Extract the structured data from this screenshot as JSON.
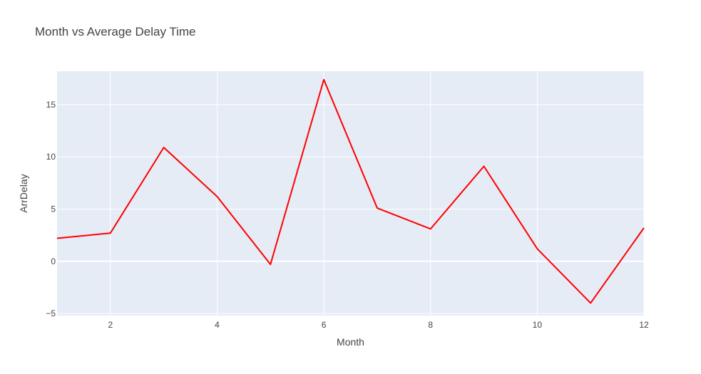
{
  "chart_data": {
    "type": "line",
    "title": "Month vs Average Delay Time",
    "xlabel": "Month",
    "ylabel": "ArrDelay",
    "xlim": [
      1,
      12
    ],
    "ylim": [
      -5.2,
      18.2
    ],
    "xticks": [
      2,
      4,
      6,
      8,
      10,
      12
    ],
    "yticks": [
      -5,
      0,
      5,
      10,
      15
    ],
    "ytick_labels": [
      "−5",
      "0",
      "5",
      "10",
      "15"
    ],
    "grid": true,
    "series": [
      {
        "name": "ArrDelay",
        "color": "#ff0000",
        "x": [
          1,
          2,
          3,
          4,
          5,
          6,
          7,
          8,
          9,
          10,
          11,
          12
        ],
        "values": [
          2.2,
          2.7,
          10.9,
          6.2,
          -0.3,
          17.4,
          5.1,
          3.1,
          9.1,
          1.2,
          -4.0,
          3.2
        ]
      }
    ]
  },
  "colors": {
    "plot_background": "#e5ecf6",
    "grid": "#ffffff",
    "text": "#444444",
    "title": "#444444"
  }
}
